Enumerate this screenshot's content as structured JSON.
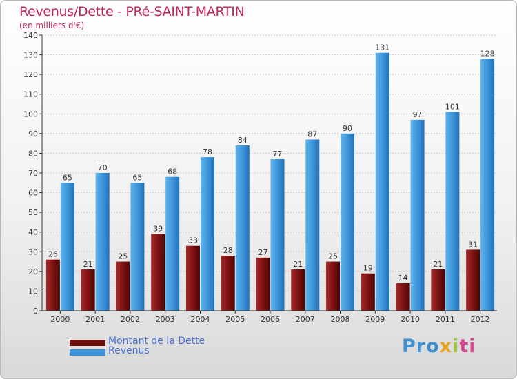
{
  "colors": {
    "debt": "#7a1010",
    "revenue": "#3a93d8",
    "title": "#c4245c",
    "legend_text": "#4a6fd6",
    "axis": "#333333",
    "grid": "#cccccc"
  },
  "header": {
    "title": "Revenus/Dette - PRé-SAINT-MARTIN",
    "subtitle": "(en milliers d'€)"
  },
  "legend": {
    "position": "bottom-left",
    "items": [
      {
        "label": "Montant de la Dette",
        "color": "#7a1010"
      },
      {
        "label": "Revenus",
        "color": "#3a93d8"
      }
    ]
  },
  "logo": {
    "text": "Proxiti"
  },
  "chart_data": {
    "type": "bar",
    "title": "Revenus/Dette - PRé-SAINT-MARTIN",
    "subtitle": "(en milliers d'€)",
    "xlabel": "",
    "ylabel": "",
    "ylim": [
      0,
      140
    ],
    "yticks": [
      0,
      10,
      20,
      30,
      40,
      50,
      60,
      70,
      80,
      90,
      100,
      110,
      120,
      130,
      140
    ],
    "grid": true,
    "categories": [
      "2000",
      "2001",
      "2002",
      "2003",
      "2004",
      "2005",
      "2006",
      "2007",
      "2008",
      "2009",
      "2010",
      "2011",
      "2012"
    ],
    "series": [
      {
        "name": "Montant de la Dette",
        "values": [
          26,
          21,
          25,
          39,
          33,
          28,
          27,
          21,
          25,
          19,
          14,
          21,
          31
        ]
      },
      {
        "name": "Revenus",
        "values": [
          65,
          70,
          65,
          68,
          78,
          84,
          77,
          87,
          90,
          131,
          97,
          101,
          128
        ]
      }
    ]
  }
}
